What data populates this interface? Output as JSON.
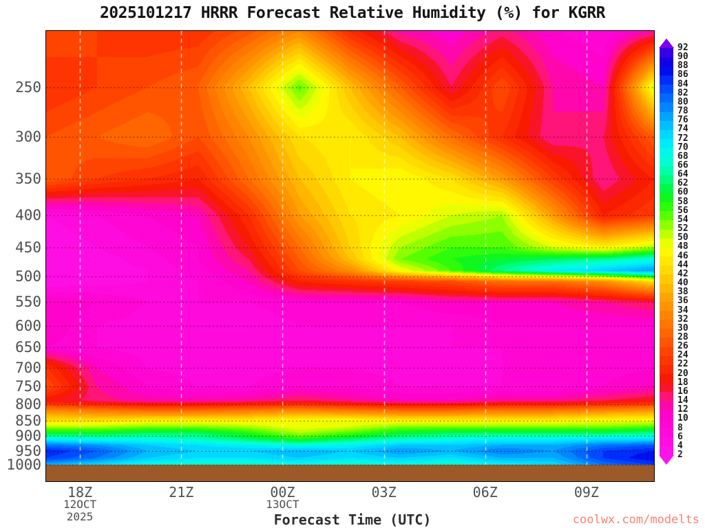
{
  "chart_data": {
    "type": "heatmap",
    "title": "2025101217 HRRR Forecast Relative Humidity (%) for KGRR",
    "xlabel": "Forecast Time (UTC)",
    "units": "%",
    "axes": {
      "t_start": 17,
      "t_end": 35,
      "p_top": 203.3,
      "p_bottom": 1062,
      "x_ticks": [
        {
          "hour": 18,
          "label": "18Z",
          "date_lines": [
            "12OCT",
            "2025"
          ]
        },
        {
          "hour": 21,
          "label": "21Z",
          "date_lines": []
        },
        {
          "hour": 24,
          "label": "00Z",
          "date_lines": [
            "13OCT"
          ]
        },
        {
          "hour": 27,
          "label": "03Z",
          "date_lines": []
        },
        {
          "hour": 30,
          "label": "06Z",
          "date_lines": []
        },
        {
          "hour": 33,
          "label": "09Z",
          "date_lines": []
        }
      ],
      "y_ticks": [
        250,
        300,
        350,
        400,
        450,
        500,
        550,
        600,
        650,
        700,
        750,
        800,
        850,
        900,
        950,
        1000
      ]
    },
    "x_hours": [
      17,
      18.5,
      20,
      21.5,
      23,
      24.5,
      26,
      27.5,
      29,
      30.5,
      32,
      33.5,
      35
    ],
    "pressure_levels": [
      200,
      250,
      300,
      350,
      400,
      450,
      470,
      490,
      510,
      550,
      600,
      650,
      700,
      750,
      790,
      820,
      850,
      870,
      890,
      910,
      930,
      950,
      975,
      1000
    ],
    "rh_grid": [
      [
        26,
        24,
        22,
        22,
        26,
        32,
        20,
        12,
        10,
        14,
        10,
        8,
        10
      ],
      [
        22,
        24,
        26,
        28,
        40,
        55,
        40,
        28,
        16,
        26,
        14,
        12,
        50
      ],
      [
        26,
        28,
        30,
        26,
        34,
        44,
        46,
        40,
        30,
        22,
        14,
        16,
        28
      ],
      [
        28,
        24,
        22,
        20,
        30,
        40,
        46,
        48,
        44,
        36,
        24,
        14,
        20
      ],
      [
        6,
        8,
        10,
        12,
        22,
        36,
        44,
        46,
        50,
        52,
        36,
        20,
        24
      ],
      [
        4,
        6,
        8,
        10,
        18,
        30,
        42,
        52,
        56,
        56,
        50,
        46,
        52
      ],
      [
        4,
        5,
        7,
        10,
        16,
        28,
        40,
        54,
        58,
        60,
        62,
        64,
        68
      ],
      [
        4,
        5,
        6,
        9,
        14,
        26,
        34,
        48,
        56,
        64,
        70,
        74,
        78
      ],
      [
        4,
        5,
        6,
        8,
        12,
        20,
        22,
        24,
        26,
        30,
        30,
        34,
        44
      ],
      [
        12,
        10,
        8,
        8,
        8,
        10,
        10,
        10,
        12,
        12,
        12,
        14,
        16
      ],
      [
        12,
        8,
        7,
        6,
        6,
        8,
        8,
        8,
        8,
        10,
        10,
        10,
        10
      ],
      [
        10,
        8,
        7,
        6,
        6,
        7,
        7,
        7,
        8,
        8,
        8,
        8,
        8
      ],
      [
        22,
        12,
        8,
        7,
        7,
        8,
        8,
        7,
        7,
        8,
        8,
        9,
        10
      ],
      [
        26,
        14,
        10,
        8,
        8,
        10,
        10,
        8,
        8,
        8,
        8,
        10,
        12
      ],
      [
        18,
        15,
        13,
        13,
        14,
        16,
        14,
        12,
        12,
        14,
        14,
        16,
        18
      ],
      [
        34,
        32,
        30,
        30,
        32,
        34,
        32,
        30,
        30,
        32,
        32,
        34,
        36
      ],
      [
        44,
        44,
        46,
        46,
        46,
        48,
        48,
        46,
        46,
        46,
        46,
        48,
        48
      ],
      [
        52,
        52,
        54,
        54,
        52,
        48,
        50,
        54,
        54,
        54,
        54,
        54,
        56
      ],
      [
        60,
        60,
        62,
        62,
        58,
        52,
        56,
        60,
        62,
        62,
        62,
        62,
        64
      ],
      [
        70,
        68,
        68,
        66,
        62,
        58,
        62,
        66,
        68,
        70,
        70,
        72,
        72
      ],
      [
        80,
        78,
        74,
        72,
        70,
        68,
        70,
        74,
        74,
        76,
        76,
        80,
        82
      ],
      [
        86,
        82,
        76,
        74,
        74,
        76,
        74,
        78,
        76,
        80,
        78,
        84,
        86
      ],
      [
        84,
        80,
        74,
        72,
        72,
        74,
        72,
        74,
        72,
        76,
        76,
        84,
        88
      ],
      [
        76,
        72,
        68,
        66,
        66,
        68,
        66,
        68,
        66,
        70,
        72,
        80,
        84
      ]
    ],
    "ground_pressure": 1000,
    "ground_color": "#9c5a28",
    "colormap_anchors": [
      [
        2,
        "#ff14f0"
      ],
      [
        12,
        "#ff00c8"
      ],
      [
        15,
        "#ff1478"
      ],
      [
        18,
        "#f81400"
      ],
      [
        24,
        "#ff3c00"
      ],
      [
        30,
        "#ff6e00"
      ],
      [
        36,
        "#ff9b00"
      ],
      [
        42,
        "#ffd200"
      ],
      [
        48,
        "#ffff00"
      ],
      [
        52,
        "#aaff00"
      ],
      [
        56,
        "#3cff00"
      ],
      [
        60,
        "#00f428"
      ],
      [
        64,
        "#00ff96"
      ],
      [
        68,
        "#00ffe6"
      ],
      [
        72,
        "#00e4ff"
      ],
      [
        76,
        "#00b4ff"
      ],
      [
        80,
        "#0078ff"
      ],
      [
        84,
        "#003cff"
      ],
      [
        88,
        "#0000e6"
      ],
      [
        92,
        "#4600e6"
      ],
      [
        96,
        "#8200ff"
      ]
    ],
    "colorbar_levels": [
      2,
      4,
      6,
      8,
      10,
      12,
      14,
      16,
      18,
      20,
      22,
      24,
      26,
      28,
      30,
      32,
      34,
      36,
      38,
      40,
      42,
      44,
      46,
      48,
      50,
      52,
      54,
      56,
      58,
      60,
      62,
      64,
      66,
      68,
      70,
      72,
      74,
      76,
      78,
      80,
      82,
      84,
      86,
      88,
      90,
      92
    ],
    "colorbar_above_color": "#7a00f0",
    "colorbar_below_color": "#ff14f0"
  },
  "watermark": "coolwx.com/modelts",
  "colors": {
    "watermark": "#fa8072",
    "tick_label": "#4e4e4e",
    "title": "#161616",
    "frame": "#000000",
    "hgrid": "rgba(0,0,0,0.75)",
    "vgrid": "rgba(255,255,255,0.8)"
  }
}
